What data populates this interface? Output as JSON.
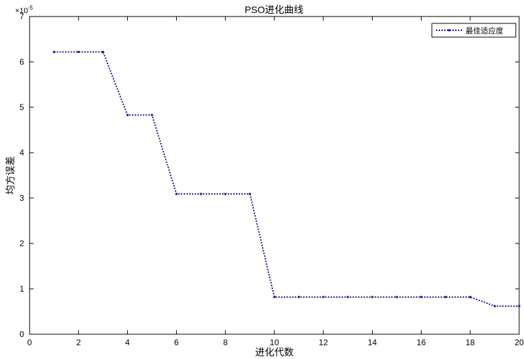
{
  "chart_data": {
    "type": "line",
    "title": "PSO进化曲线",
    "xlabel": "进化代数",
    "ylabel": "均方误差",
    "y_exponent_label": "×10",
    "y_exponent": "-5",
    "xlim": [
      0,
      20
    ],
    "ylim": [
      0,
      7
    ],
    "xticks": [
      0,
      2,
      4,
      6,
      8,
      10,
      12,
      14,
      16,
      18,
      20
    ],
    "yticks": [
      0,
      1,
      2,
      3,
      4,
      5,
      6,
      7
    ],
    "grid": false,
    "legend_position": "top-right",
    "line_color": "#1a1a8c",
    "series": [
      {
        "name": "最佳适应度",
        "x": [
          1,
          2,
          3,
          4,
          5,
          6,
          7,
          8,
          9,
          10,
          11,
          12,
          13,
          14,
          15,
          16,
          17,
          18,
          19,
          20
        ],
        "y": [
          6.22,
          6.22,
          6.22,
          4.83,
          4.83,
          3.09,
          3.09,
          3.09,
          3.09,
          0.82,
          0.82,
          0.82,
          0.82,
          0.82,
          0.82,
          0.82,
          0.82,
          0.82,
          0.62,
          0.62
        ]
      }
    ]
  }
}
